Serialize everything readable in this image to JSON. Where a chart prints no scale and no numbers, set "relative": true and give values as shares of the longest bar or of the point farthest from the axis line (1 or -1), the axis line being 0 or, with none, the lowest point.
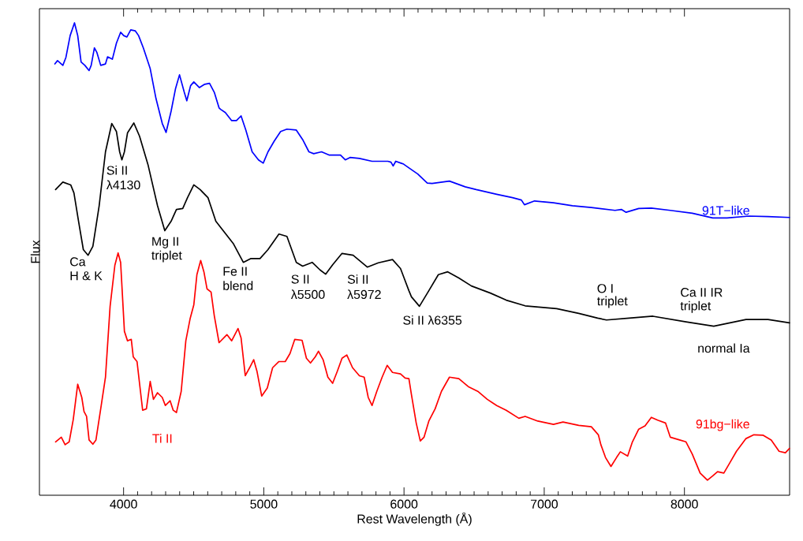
{
  "chart_data": {
    "type": "line",
    "relative": true,
    "xlabel": "Rest Wavelength (Å)",
    "ylabel": "Flux",
    "xlim": [
      3400,
      8750
    ],
    "xticks": [
      4000,
      5000,
      6000,
      7000,
      8000
    ],
    "grid": false,
    "line_style": "solid",
    "series": [
      {
        "name": "91T−like",
        "color": "#0000ff",
        "x": [
          3510,
          3529,
          3567,
          3589,
          3619,
          3650,
          3673,
          3697,
          3724,
          3754,
          3769,
          3792,
          3810,
          3837,
          3871,
          3886,
          3920,
          3949,
          3979,
          4001,
          4024,
          4051,
          4084,
          4107,
          4141,
          4190,
          4231,
          4276,
          4303,
          4339,
          4370,
          4399,
          4433,
          4451,
          4478,
          4501,
          4541,
          4579,
          4613,
          4647,
          4681,
          4692,
          4726,
          4771,
          4805,
          4838,
          4872,
          4917,
          4962,
          4996,
          5030,
          5075,
          5120,
          5165,
          5232,
          5277,
          5322,
          5356,
          5412,
          5468,
          5513,
          5547,
          5581,
          5615,
          5682,
          5772,
          5885,
          5907,
          5923,
          5941,
          5997,
          6035,
          6098,
          6166,
          6200,
          6324,
          6436,
          6515,
          6661,
          6774,
          6837,
          6859,
          6931,
          7066,
          7201,
          7336,
          7505,
          7550,
          7584,
          7674,
          7764,
          7899,
          8056,
          8202,
          8304,
          8461,
          8596,
          8749
        ],
        "values": [
          0.913,
          0.92,
          0.91,
          0.927,
          0.973,
          1.0,
          0.973,
          0.917,
          0.91,
          0.899,
          0.91,
          0.947,
          0.937,
          0.91,
          0.913,
          0.928,
          0.923,
          0.957,
          0.98,
          0.973,
          0.97,
          0.985,
          0.983,
          0.973,
          0.947,
          0.903,
          0.84,
          0.787,
          0.768,
          0.813,
          0.86,
          0.89,
          0.853,
          0.835,
          0.867,
          0.875,
          0.863,
          0.87,
          0.872,
          0.853,
          0.82,
          0.817,
          0.81,
          0.793,
          0.793,
          0.803,
          0.773,
          0.727,
          0.71,
          0.703,
          0.727,
          0.75,
          0.77,
          0.775,
          0.773,
          0.753,
          0.727,
          0.723,
          0.727,
          0.72,
          0.72,
          0.72,
          0.71,
          0.715,
          0.713,
          0.707,
          0.707,
          0.705,
          0.697,
          0.707,
          0.701,
          0.693,
          0.68,
          0.661,
          0.66,
          0.665,
          0.653,
          0.647,
          0.637,
          0.63,
          0.625,
          0.615,
          0.623,
          0.619,
          0.613,
          0.609,
          0.603,
          0.605,
          0.599,
          0.607,
          0.608,
          0.603,
          0.597,
          0.587,
          0.587,
          0.591,
          0.59,
          0.588
        ]
      },
      {
        "name": "normal Ia",
        "color": "#000000",
        "x": [
          3515,
          3567,
          3623,
          3646,
          3679,
          3713,
          3747,
          3781,
          3826,
          3871,
          3916,
          3949,
          3972,
          3988,
          4006,
          4028,
          4073,
          4114,
          4174,
          4242,
          4294,
          4339,
          4377,
          4422,
          4456,
          4501,
          4546,
          4602,
          4658,
          4692,
          4782,
          4854,
          4906,
          4973,
          5030,
          5108,
          5165,
          5232,
          5277,
          5345,
          5401,
          5441,
          5491,
          5558,
          5637,
          5738,
          5817,
          5918,
          5975,
          6035,
          6053,
          6110,
          6177,
          6245,
          6312,
          6391,
          6481,
          6616,
          6729,
          6864,
          7089,
          7246,
          7381,
          7444,
          7606,
          7775,
          8011,
          8209,
          8439,
          8596,
          8749
        ],
        "values": [
          0.647,
          0.663,
          0.657,
          0.64,
          0.58,
          0.52,
          0.508,
          0.527,
          0.613,
          0.727,
          0.787,
          0.77,
          0.727,
          0.71,
          0.727,
          0.767,
          0.788,
          0.76,
          0.7,
          0.613,
          0.56,
          0.58,
          0.605,
          0.607,
          0.63,
          0.657,
          0.647,
          0.63,
          0.58,
          0.567,
          0.533,
          0.493,
          0.501,
          0.501,
          0.52,
          0.553,
          0.548,
          0.493,
          0.485,
          0.493,
          0.477,
          0.468,
          0.488,
          0.512,
          0.508,
          0.483,
          0.492,
          0.499,
          0.48,
          0.433,
          0.42,
          0.4,
          0.433,
          0.467,
          0.473,
          0.46,
          0.443,
          0.428,
          0.413,
          0.401,
          0.395,
          0.385,
          0.375,
          0.371,
          0.375,
          0.379,
          0.367,
          0.358,
          0.372,
          0.372,
          0.365
        ]
      },
      {
        "name": "91bg−like",
        "color": "#ff0000",
        "x": [
          3515,
          3556,
          3583,
          3612,
          3641,
          3673,
          3702,
          3718,
          3736,
          3754,
          3781,
          3803,
          3837,
          3871,
          3904,
          3938,
          3961,
          3979,
          4006,
          4028,
          4055,
          4069,
          4096,
          4136,
          4163,
          4190,
          4213,
          4242,
          4276,
          4298,
          4332,
          4354,
          4377,
          4411,
          4444,
          4474,
          4501,
          4523,
          4550,
          4573,
          4595,
          4624,
          4647,
          4681,
          4737,
          4771,
          4816,
          4838,
          4868,
          4899,
          4928,
          4951,
          4985,
          5025,
          5063,
          5108,
          5153,
          5187,
          5221,
          5273,
          5304,
          5333,
          5367,
          5390,
          5423,
          5457,
          5491,
          5525,
          5558,
          5592,
          5633,
          5682,
          5716,
          5745,
          5772,
          5806,
          5844,
          5880,
          5918,
          5975,
          6008,
          6035,
          6053,
          6087,
          6116,
          6143,
          6177,
          6222,
          6267,
          6324,
          6391,
          6458,
          6526,
          6594,
          6661,
          6729,
          6819,
          6864,
          6954,
          7066,
          7134,
          7246,
          7336,
          7386,
          7404,
          7437,
          7476,
          7516,
          7543,
          7595,
          7629,
          7674,
          7719,
          7764,
          7809,
          7865,
          7899,
          7966,
          8011,
          8056,
          8112,
          8164,
          8202,
          8236,
          8281,
          8326,
          8371,
          8439,
          8495,
          8562,
          8619,
          8675,
          8720,
          8749
        ],
        "values": [
          0.113,
          0.123,
          0.107,
          0.113,
          0.16,
          0.235,
          0.207,
          0.177,
          0.167,
          0.117,
          0.108,
          0.117,
          0.183,
          0.25,
          0.4,
          0.487,
          0.513,
          0.493,
          0.347,
          0.327,
          0.33,
          0.293,
          0.283,
          0.18,
          0.183,
          0.241,
          0.203,
          0.217,
          0.207,
          0.19,
          0.2,
          0.18,
          0.175,
          0.22,
          0.327,
          0.373,
          0.403,
          0.467,
          0.497,
          0.473,
          0.437,
          0.43,
          0.38,
          0.323,
          0.34,
          0.327,
          0.353,
          0.333,
          0.253,
          0.27,
          0.287,
          0.263,
          0.21,
          0.227,
          0.27,
          0.283,
          0.283,
          0.3,
          0.33,
          0.328,
          0.29,
          0.28,
          0.293,
          0.305,
          0.287,
          0.25,
          0.237,
          0.263,
          0.29,
          0.297,
          0.27,
          0.253,
          0.25,
          0.207,
          0.19,
          0.22,
          0.25,
          0.275,
          0.26,
          0.257,
          0.248,
          0.247,
          0.213,
          0.153,
          0.115,
          0.123,
          0.157,
          0.183,
          0.22,
          0.25,
          0.247,
          0.23,
          0.22,
          0.203,
          0.19,
          0.18,
          0.163,
          0.167,
          0.157,
          0.15,
          0.155,
          0.148,
          0.145,
          0.128,
          0.107,
          0.08,
          0.061,
          0.08,
          0.092,
          0.083,
          0.113,
          0.14,
          0.147,
          0.165,
          0.159,
          0.153,
          0.123,
          0.117,
          0.113,
          0.087,
          0.047,
          0.032,
          0.041,
          0.05,
          0.047,
          0.07,
          0.093,
          0.12,
          0.128,
          0.127,
          0.117,
          0.093,
          0.09,
          0.099
        ]
      }
    ],
    "annotations": [
      "Ca",
      "H & K",
      "Si II",
      "λ4130",
      "Mg II",
      "triplet",
      "Fe II",
      "blend",
      "S II",
      "λ5500",
      "Si II",
      "λ5972",
      "Si II λ6355",
      "O I",
      "triplet",
      "Ca II IR",
      "triplet",
      "Ti II"
    ]
  }
}
